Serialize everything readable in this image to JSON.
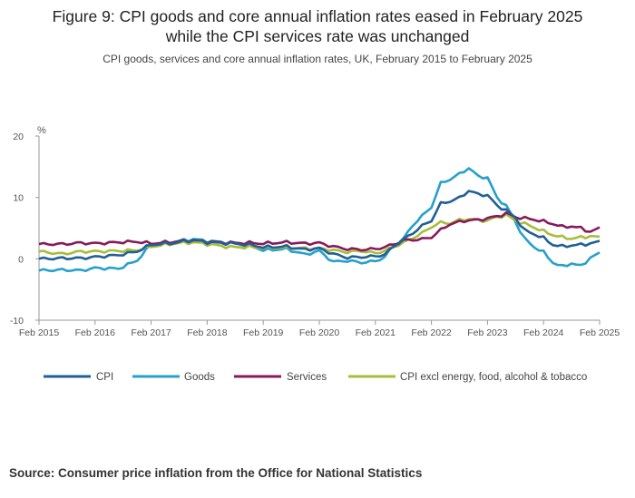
{
  "header": {
    "title_line1": "Figure 9: CPI goods and core annual inflation rates eased in February 2025",
    "title_line2": "while the CPI services rate was unchanged",
    "subtitle": "CPI goods, services and core annual inflation rates, UK, February 2015 to February 2025"
  },
  "footer": {
    "source": "Source: Consumer price inflation from the Office for National Statistics"
  },
  "chart_data": {
    "type": "line",
    "title": "CPI goods, services and core annual inflation rates, UK, February 2015 to February 2025",
    "ylabel": "%",
    "xlabel": "",
    "ylim": [
      -10,
      20
    ],
    "yticks": [
      -10,
      0,
      10,
      20
    ],
    "xlim_years": [
      2015.0833,
      2025.0833
    ],
    "xticks": [
      {
        "label": "Feb 2015",
        "t": 2015.0833
      },
      {
        "label": "Feb 2016",
        "t": 2016.0833
      },
      {
        "label": "Feb 2017",
        "t": 2017.0833
      },
      {
        "label": "Feb 2018",
        "t": 2018.0833
      },
      {
        "label": "Feb 2019",
        "t": 2019.0833
      },
      {
        "label": "Feb 2020",
        "t": 2020.0833
      },
      {
        "label": "Feb 2021",
        "t": 2021.0833
      },
      {
        "label": "Feb 2022",
        "t": 2022.0833
      },
      {
        "label": "Feb 2023",
        "t": 2023.0833
      },
      {
        "label": "Feb 2024",
        "t": 2024.0833
      },
      {
        "label": "Feb 2025",
        "t": 2025.0833
      }
    ],
    "grid": false,
    "legend_position": "bottom",
    "series": [
      {
        "name": "CPI",
        "color": "#206095",
        "keys": [
          [
            2015.08,
            0.0
          ],
          [
            2015.5,
            0.1
          ],
          [
            2015.83,
            0.1
          ],
          [
            2016.08,
            0.3
          ],
          [
            2016.5,
            0.6
          ],
          [
            2016.83,
            1.2
          ],
          [
            2017.08,
            2.3
          ],
          [
            2017.5,
            2.6
          ],
          [
            2017.83,
            3.1
          ],
          [
            2018.08,
            2.7
          ],
          [
            2018.5,
            2.5
          ],
          [
            2018.83,
            2.3
          ],
          [
            2019.08,
            1.9
          ],
          [
            2019.5,
            2.0
          ],
          [
            2019.83,
            1.5
          ],
          [
            2020.08,
            1.7
          ],
          [
            2020.33,
            0.8
          ],
          [
            2020.58,
            0.2
          ],
          [
            2020.83,
            0.3
          ],
          [
            2021.08,
            0.4
          ],
          [
            2021.25,
            0.7
          ],
          [
            2021.42,
            2.1
          ],
          [
            2021.58,
            3.1
          ],
          [
            2021.75,
            4.2
          ],
          [
            2021.92,
            5.4
          ],
          [
            2022.08,
            6.2
          ],
          [
            2022.25,
            9.0
          ],
          [
            2022.42,
            9.4
          ],
          [
            2022.58,
            9.9
          ],
          [
            2022.75,
            11.1
          ],
          [
            2022.92,
            10.5
          ],
          [
            2023.08,
            10.4
          ],
          [
            2023.25,
            8.7
          ],
          [
            2023.42,
            7.9
          ],
          [
            2023.58,
            6.7
          ],
          [
            2023.75,
            4.6
          ],
          [
            2023.92,
            4.0
          ],
          [
            2024.08,
            3.4
          ],
          [
            2024.25,
            2.3
          ],
          [
            2024.42,
            2.0
          ],
          [
            2024.58,
            2.2
          ],
          [
            2024.75,
            2.3
          ],
          [
            2024.92,
            2.5
          ],
          [
            2025.08,
            2.8
          ]
        ]
      },
      {
        "name": "Goods",
        "color": "#27a0cc",
        "keys": [
          [
            2015.08,
            -1.9
          ],
          [
            2015.5,
            -1.8
          ],
          [
            2015.83,
            -1.9
          ],
          [
            2016.08,
            -1.5
          ],
          [
            2016.5,
            -1.6
          ],
          [
            2016.83,
            -0.3
          ],
          [
            2017.08,
            2.3
          ],
          [
            2017.5,
            2.8
          ],
          [
            2017.83,
            3.2
          ],
          [
            2018.08,
            2.9
          ],
          [
            2018.5,
            2.6
          ],
          [
            2018.83,
            2.2
          ],
          [
            2019.08,
            1.4
          ],
          [
            2019.5,
            1.6
          ],
          [
            2019.83,
            0.7
          ],
          [
            2020.08,
            1.3
          ],
          [
            2020.33,
            -0.5
          ],
          [
            2020.58,
            -0.3
          ],
          [
            2020.83,
            -0.6
          ],
          [
            2021.08,
            -0.4
          ],
          [
            2021.25,
            0.3
          ],
          [
            2021.42,
            2.3
          ],
          [
            2021.58,
            3.2
          ],
          [
            2021.75,
            5.5
          ],
          [
            2021.92,
            7.0
          ],
          [
            2022.08,
            8.4
          ],
          [
            2022.25,
            12.3
          ],
          [
            2022.42,
            13.0
          ],
          [
            2022.58,
            13.8
          ],
          [
            2022.75,
            14.8
          ],
          [
            2022.92,
            13.4
          ],
          [
            2023.08,
            13.3
          ],
          [
            2023.25,
            10.0
          ],
          [
            2023.42,
            8.6
          ],
          [
            2023.58,
            6.0
          ],
          [
            2023.75,
            3.2
          ],
          [
            2023.92,
            1.9
          ],
          [
            2024.08,
            1.1
          ],
          [
            2024.25,
            -0.6
          ],
          [
            2024.42,
            -1.3
          ],
          [
            2024.58,
            -0.7
          ],
          [
            2024.75,
            -1.2
          ],
          [
            2024.92,
            0.2
          ],
          [
            2025.08,
            0.9
          ]
        ]
      },
      {
        "name": "Services",
        "color": "#871a5b",
        "keys": [
          [
            2015.08,
            2.4
          ],
          [
            2015.5,
            2.4
          ],
          [
            2015.83,
            2.6
          ],
          [
            2016.08,
            2.5
          ],
          [
            2016.5,
            2.7
          ],
          [
            2016.83,
            2.8
          ],
          [
            2017.08,
            2.5
          ],
          [
            2017.5,
            2.8
          ],
          [
            2017.83,
            3.0
          ],
          [
            2018.08,
            2.8
          ],
          [
            2018.5,
            2.6
          ],
          [
            2018.83,
            2.6
          ],
          [
            2019.08,
            2.5
          ],
          [
            2019.5,
            2.7
          ],
          [
            2019.83,
            2.5
          ],
          [
            2020.08,
            2.6
          ],
          [
            2020.33,
            2.0
          ],
          [
            2020.58,
            1.6
          ],
          [
            2020.83,
            1.5
          ],
          [
            2021.08,
            1.6
          ],
          [
            2021.25,
            1.9
          ],
          [
            2021.42,
            2.4
          ],
          [
            2021.58,
            3.0
          ],
          [
            2021.75,
            3.1
          ],
          [
            2021.92,
            3.2
          ],
          [
            2022.08,
            3.5
          ],
          [
            2022.25,
            4.7
          ],
          [
            2022.42,
            5.7
          ],
          [
            2022.58,
            6.0
          ],
          [
            2022.75,
            6.3
          ],
          [
            2022.92,
            6.3
          ],
          [
            2023.08,
            6.6
          ],
          [
            2023.25,
            6.9
          ],
          [
            2023.42,
            7.4
          ],
          [
            2023.58,
            6.8
          ],
          [
            2023.75,
            6.6
          ],
          [
            2023.92,
            6.4
          ],
          [
            2024.08,
            6.1
          ],
          [
            2024.25,
            5.7
          ],
          [
            2024.42,
            5.2
          ],
          [
            2024.58,
            5.3
          ],
          [
            2024.75,
            5.0
          ],
          [
            2024.92,
            4.4
          ],
          [
            2025.08,
            5.0
          ]
        ]
      },
      {
        "name": "CPI excl energy, food, alcohol & tobacco",
        "color": "#a8bd3a",
        "keys": [
          [
            2015.08,
            1.2
          ],
          [
            2015.5,
            0.8
          ],
          [
            2015.83,
            1.2
          ],
          [
            2016.08,
            1.2
          ],
          [
            2016.5,
            1.3
          ],
          [
            2016.83,
            1.4
          ],
          [
            2017.08,
            2.0
          ],
          [
            2017.5,
            2.5
          ],
          [
            2017.83,
            2.7
          ],
          [
            2018.08,
            2.4
          ],
          [
            2018.5,
            1.9
          ],
          [
            2018.83,
            1.9
          ],
          [
            2019.08,
            1.8
          ],
          [
            2019.5,
            1.8
          ],
          [
            2019.83,
            1.7
          ],
          [
            2020.08,
            1.7
          ],
          [
            2020.33,
            1.4
          ],
          [
            2020.58,
            1.1
          ],
          [
            2020.83,
            1.3
          ],
          [
            2021.08,
            0.9
          ],
          [
            2021.25,
            1.3
          ],
          [
            2021.42,
            2.0
          ],
          [
            2021.58,
            2.6
          ],
          [
            2021.75,
            3.4
          ],
          [
            2021.92,
            4.2
          ],
          [
            2022.08,
            5.2
          ],
          [
            2022.25,
            5.9
          ],
          [
            2022.42,
            5.8
          ],
          [
            2022.58,
            6.3
          ],
          [
            2022.75,
            6.5
          ],
          [
            2022.92,
            6.3
          ],
          [
            2023.08,
            6.2
          ],
          [
            2023.25,
            6.8
          ],
          [
            2023.42,
            7.1
          ],
          [
            2023.58,
            6.2
          ],
          [
            2023.75,
            5.7
          ],
          [
            2023.92,
            5.1
          ],
          [
            2024.08,
            4.5
          ],
          [
            2024.25,
            3.9
          ],
          [
            2024.42,
            3.5
          ],
          [
            2024.58,
            3.3
          ],
          [
            2024.75,
            3.5
          ],
          [
            2024.92,
            3.7
          ],
          [
            2025.08,
            3.5
          ]
        ]
      }
    ]
  }
}
